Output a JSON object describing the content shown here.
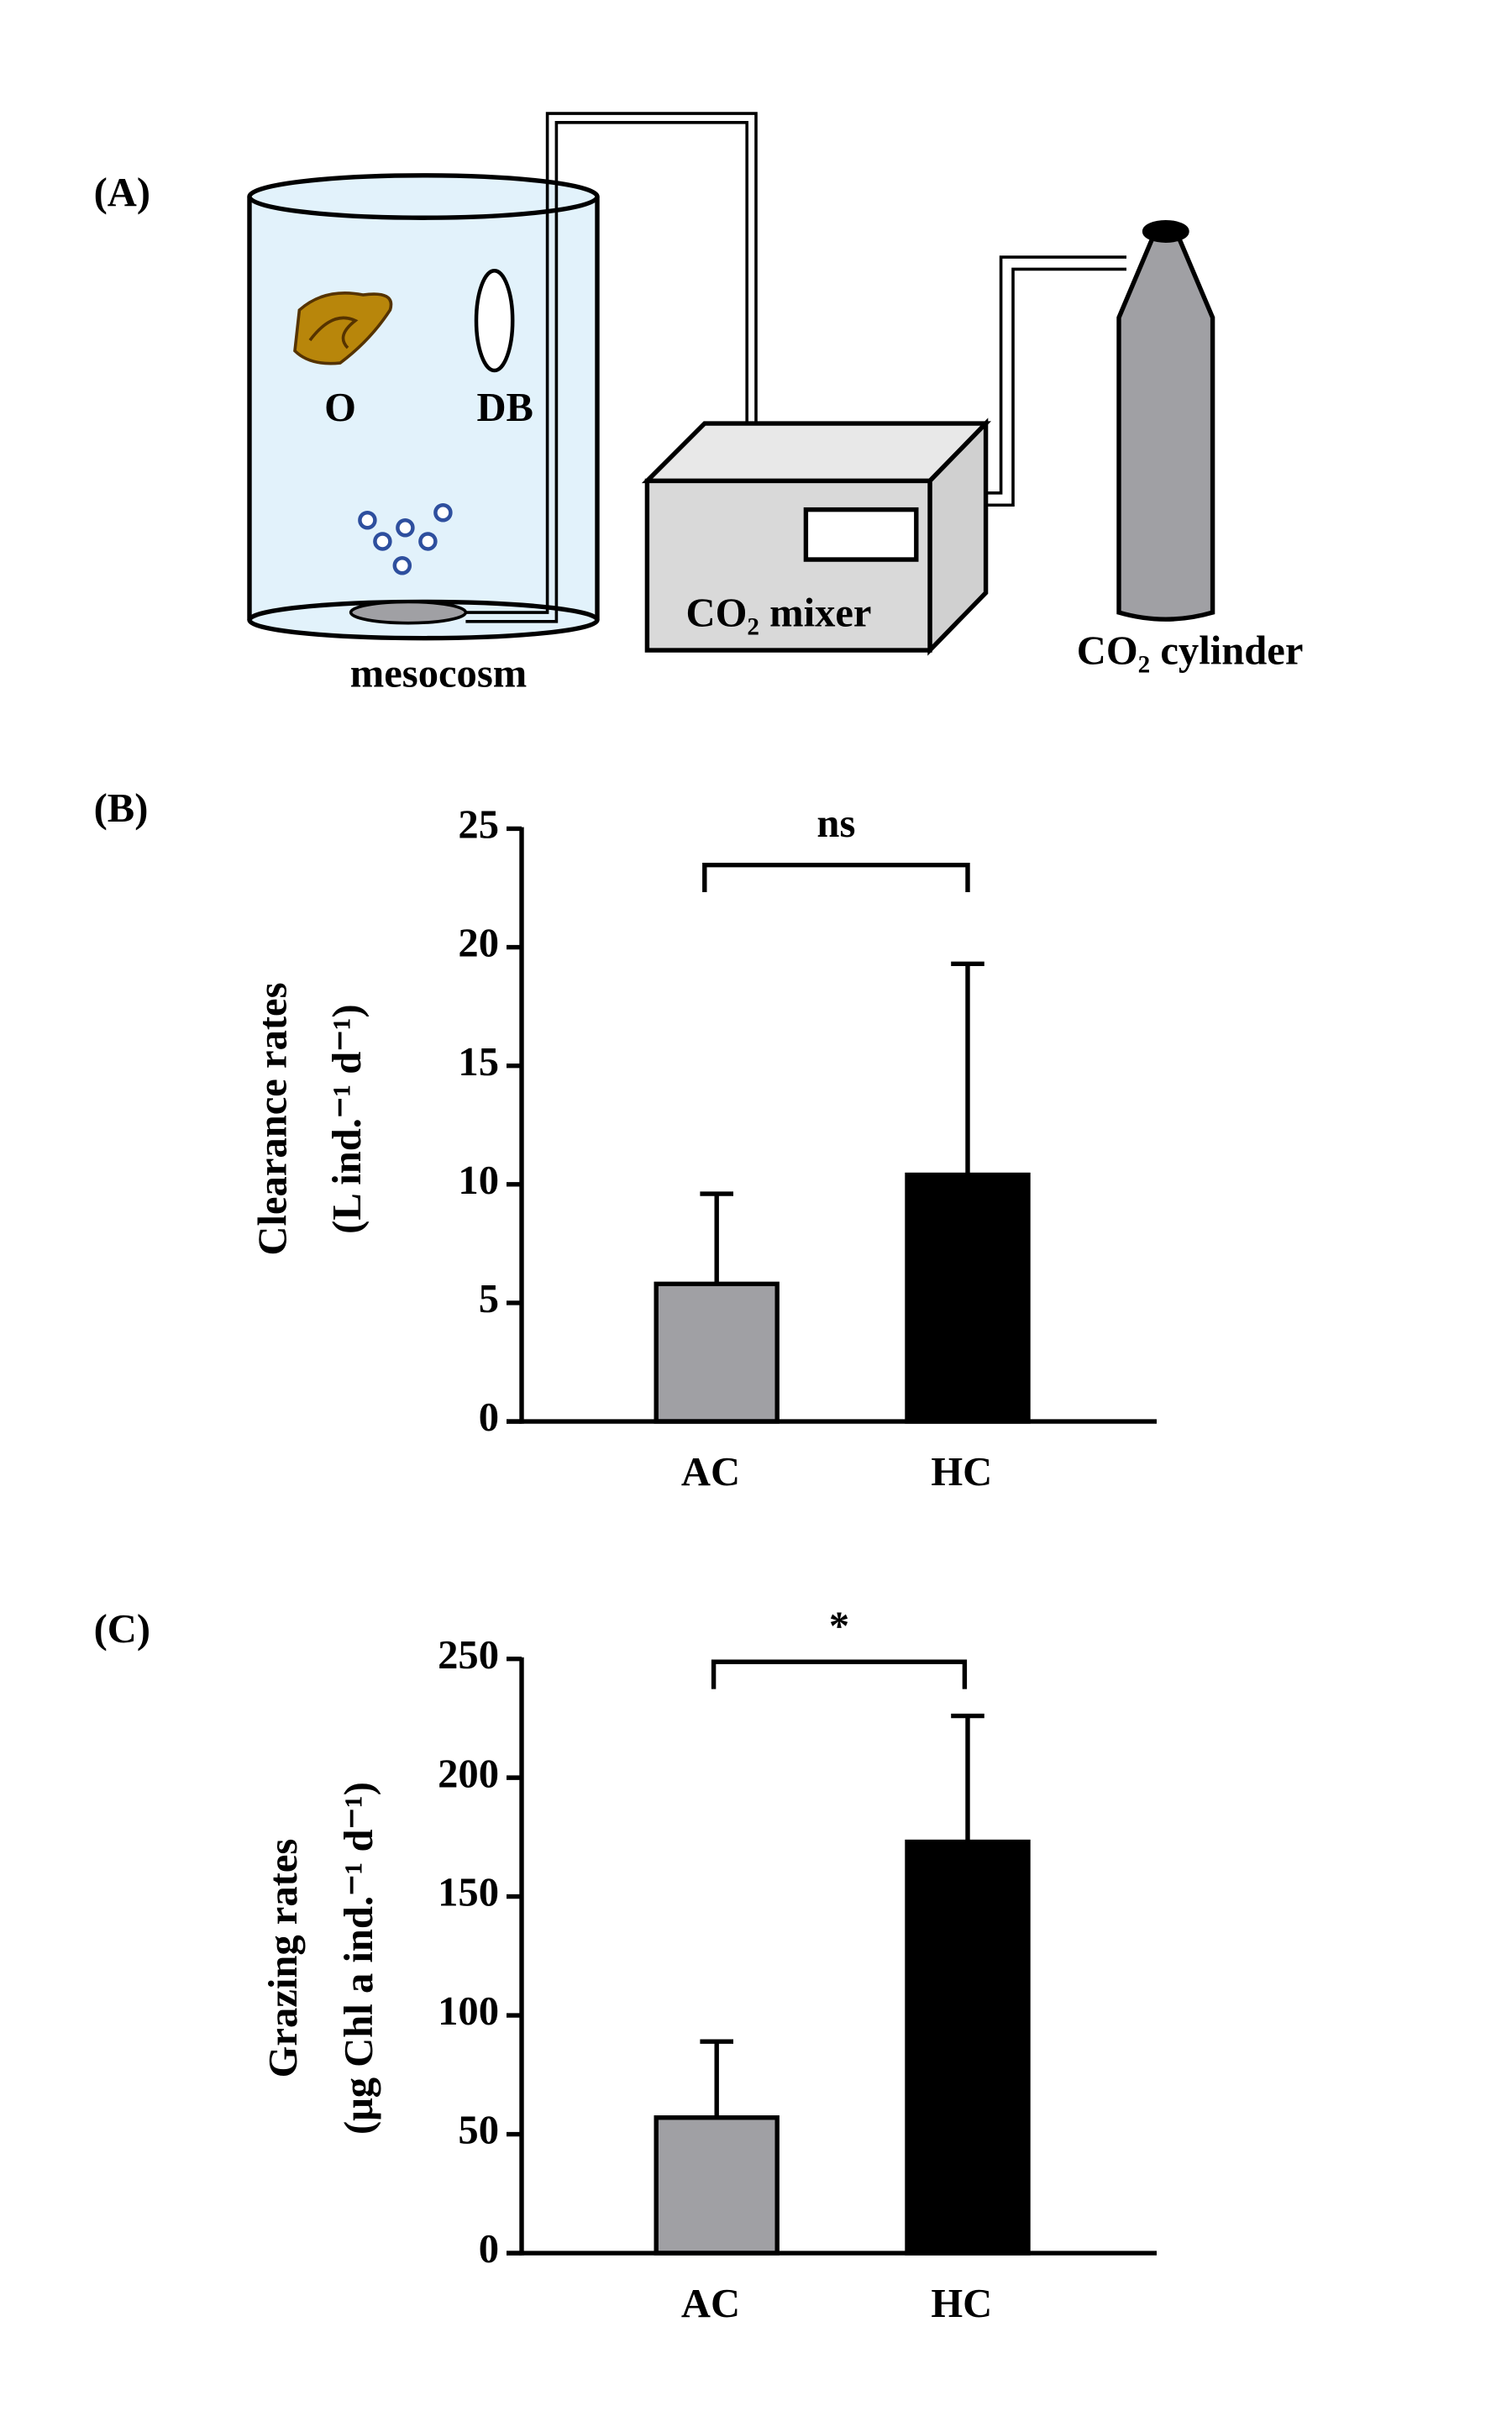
{
  "diagram": {
    "panel": "(A)",
    "labels": {
      "oyster": "O",
      "bag": "DB",
      "tank": "mesocosm",
      "mixer": "CO₂ mixer",
      "cylinder": "CO₂ cylinder"
    }
  },
  "chart_data": [
    {
      "type": "bar",
      "panel": "(B)",
      "ylabel": [
        "Clearance rates",
        "(L ind.⁻¹ d⁻¹)"
      ],
      "categories": [
        "AC",
        "HC"
      ],
      "values": [
        5.8,
        10.4
      ],
      "errors": [
        3.8,
        8.9
      ],
      "colors": [
        "#a0a0a4",
        "#000000"
      ],
      "ylim": [
        0,
        25
      ],
      "yticks": [
        0,
        5,
        10,
        15,
        20,
        25
      ],
      "annotation": "ns"
    },
    {
      "type": "bar",
      "panel": "(C)",
      "ylabel": [
        "Grazing rates",
        "(μg Chl a ind.⁻¹ d⁻¹)"
      ],
      "categories": [
        "AC",
        "HC"
      ],
      "values": [
        57,
        173
      ],
      "errors": [
        32,
        53
      ],
      "colors": [
        "#a0a0a4",
        "#000000"
      ],
      "ylim": [
        0,
        250
      ],
      "yticks": [
        0,
        50,
        100,
        150,
        200,
        250
      ],
      "annotation": "*"
    }
  ]
}
